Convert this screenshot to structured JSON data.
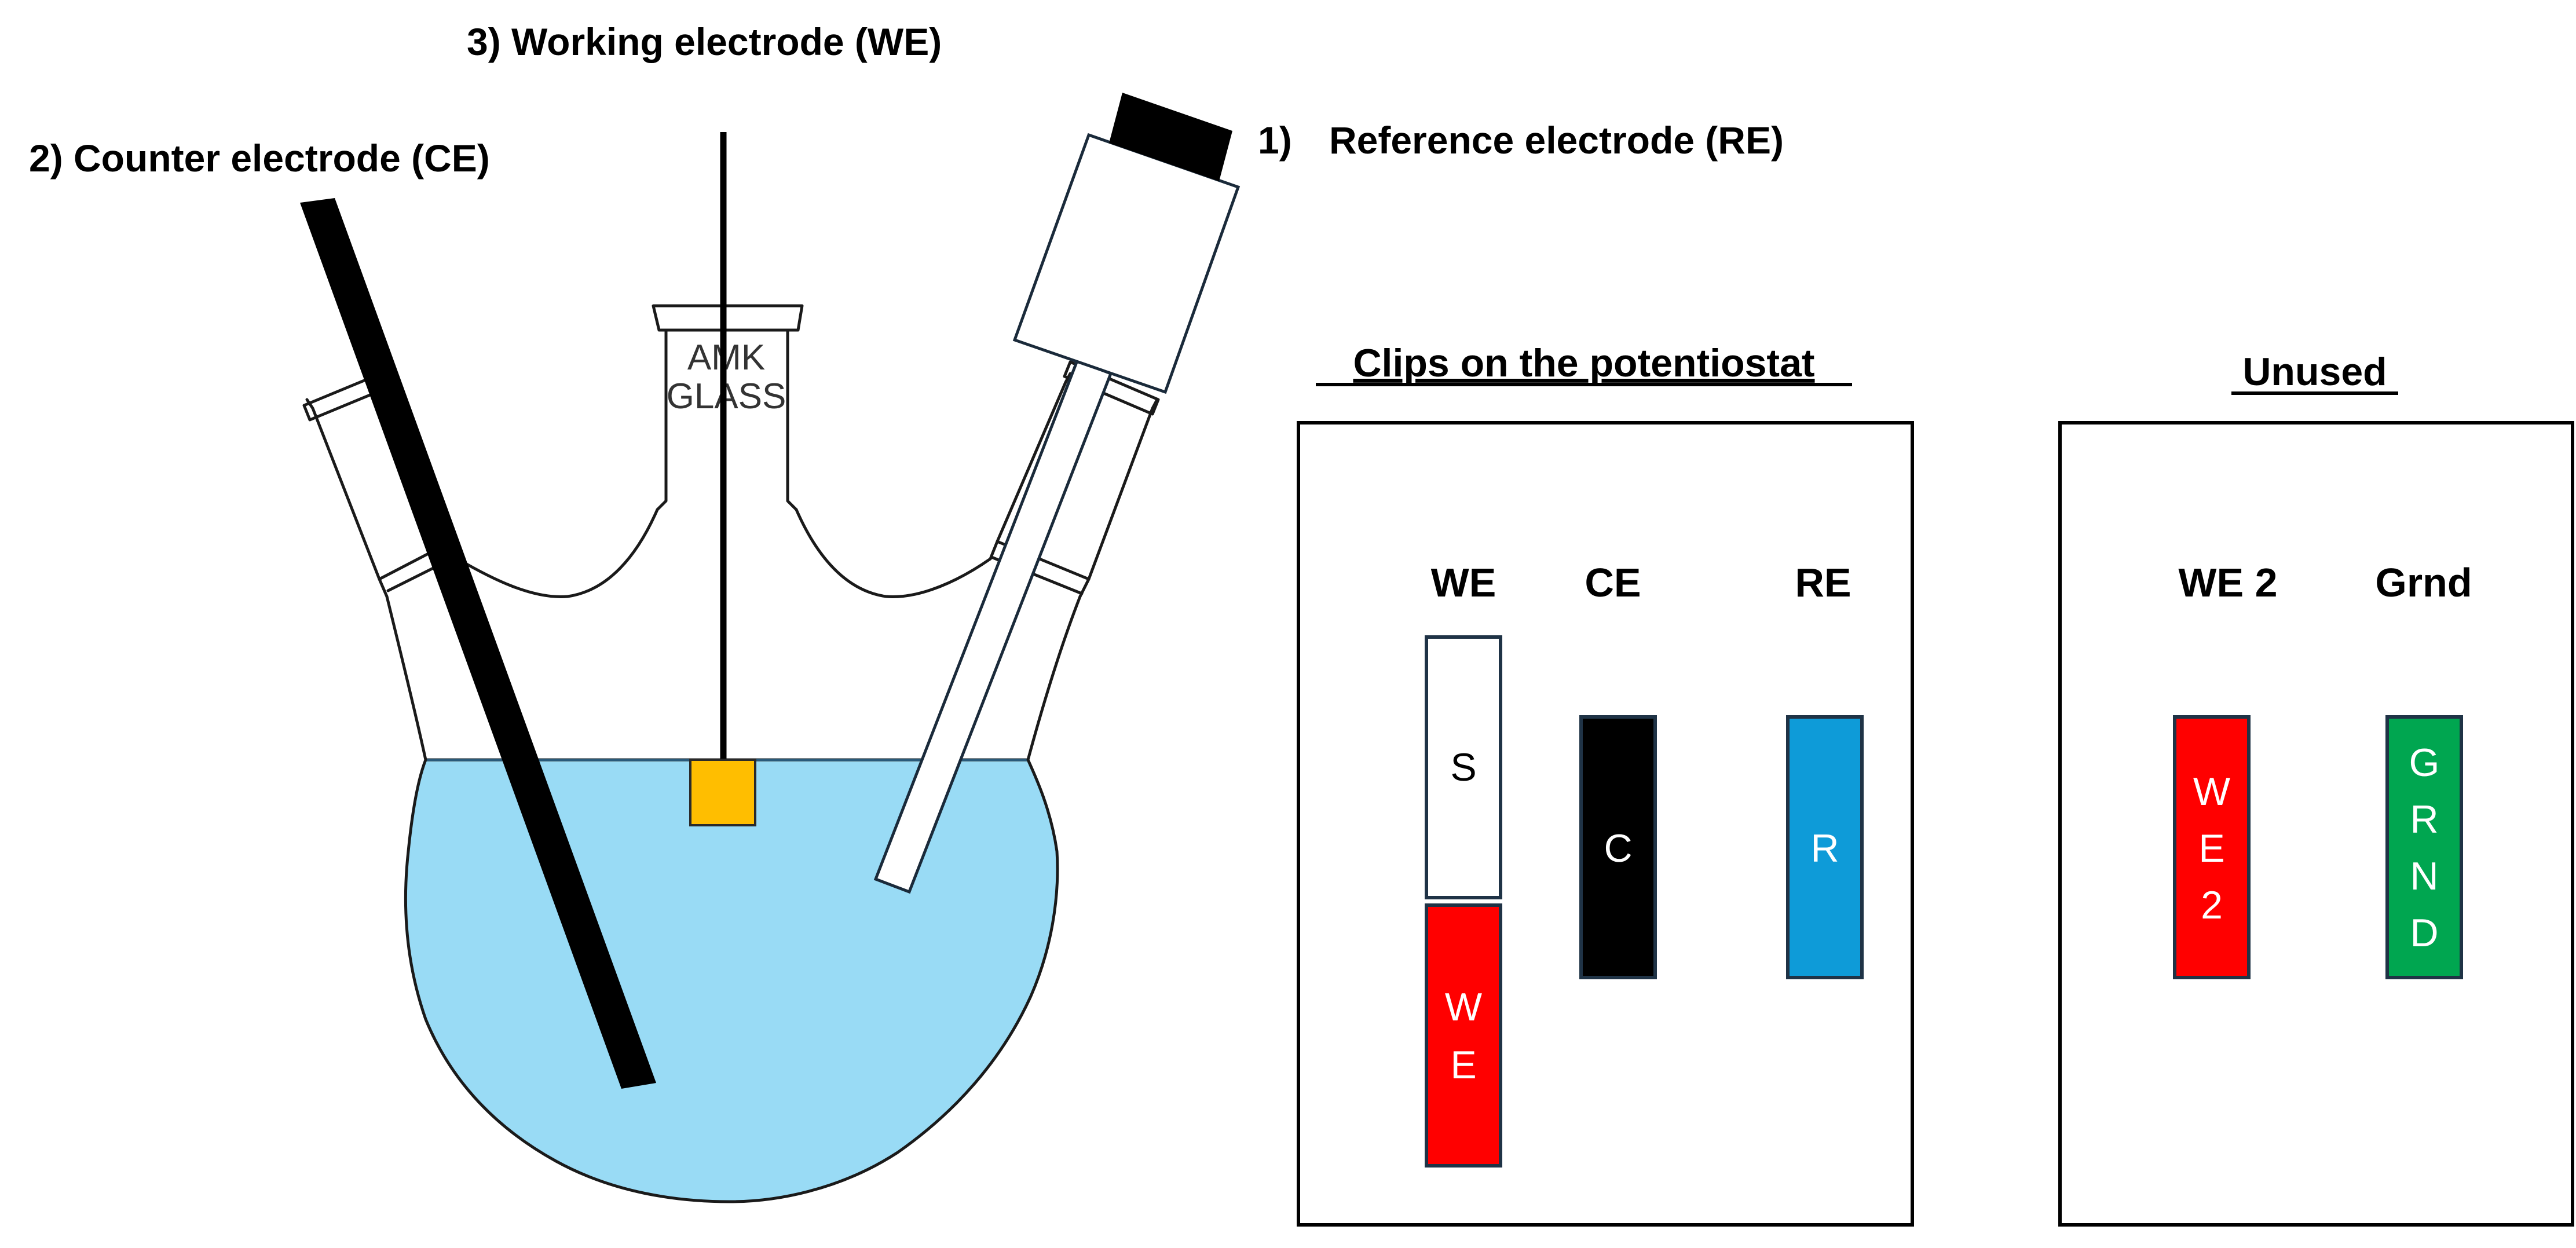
{
  "labels": {
    "we_label": "3) Working electrode (WE)",
    "ce_label": "2) Counter electrode (CE)",
    "re_num": "1)",
    "re_label": "Reference electrode (RE)",
    "flask_brand_line1": "AMK",
    "flask_brand_line2": "GLASS"
  },
  "potentiostat_panel": {
    "title": "Clips on the potentiostat",
    "headers": [
      "WE",
      "CE",
      "RE"
    ],
    "clips": [
      {
        "id": "sense",
        "text": "S",
        "color": "#ffffff",
        "text_color": "#000000"
      },
      {
        "id": "we",
        "text": "WE",
        "color": "#ff0000",
        "text_color": "#ffffff"
      },
      {
        "id": "ce",
        "text": "C",
        "color": "#000000",
        "text_color": "#ffffff"
      },
      {
        "id": "re",
        "text": "R",
        "color": "#0e9bd8",
        "text_color": "#ffffff"
      }
    ]
  },
  "unused_panel": {
    "title": "Unused",
    "headers": [
      "WE 2",
      "Grnd"
    ],
    "clips": [
      {
        "id": "we2",
        "text": "WE2",
        "color": "#ff0000",
        "text_color": "#ffffff"
      },
      {
        "id": "grnd",
        "text": "GRND",
        "color": "#00a650",
        "text_color": "#ffffff"
      }
    ]
  },
  "colors": {
    "solution": "#99dbf5",
    "working_electrode_tip": "#ffbe00",
    "electrode_black": "#000000",
    "panel_border": "#000000"
  }
}
